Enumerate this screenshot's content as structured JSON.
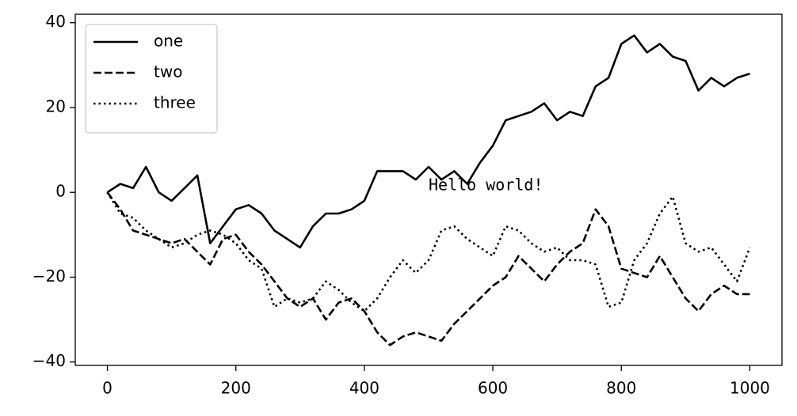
{
  "chart_data": {
    "type": "line",
    "x": [
      0,
      20,
      40,
      60,
      80,
      100,
      120,
      140,
      160,
      180,
      200,
      220,
      240,
      260,
      280,
      300,
      320,
      340,
      360,
      380,
      400,
      420,
      440,
      460,
      480,
      500,
      520,
      540,
      560,
      580,
      600,
      620,
      640,
      660,
      680,
      700,
      720,
      740,
      760,
      780,
      800,
      820,
      840,
      860,
      880,
      900,
      920,
      940,
      960,
      980,
      1000
    ],
    "series": [
      {
        "name": "one",
        "color": "#000000",
        "linestyle": "solid",
        "values": [
          0,
          2,
          1,
          6,
          0,
          -2,
          1,
          4,
          -12,
          -8,
          -4,
          -3,
          -5,
          -9,
          -11,
          -13,
          -8,
          -5,
          -5,
          -4,
          -2,
          5,
          5,
          5,
          3,
          6,
          3,
          5,
          2,
          7,
          11,
          17,
          18,
          19,
          21,
          17,
          19,
          18,
          25,
          27,
          35,
          37,
          33,
          35,
          32,
          31,
          24,
          27,
          25,
          27,
          28
        ]
      },
      {
        "name": "two",
        "color": "#000000",
        "linestyle": "dashed",
        "values": [
          0,
          -4,
          -9,
          -10,
          -11,
          -12,
          -11,
          -14,
          -17,
          -11,
          -10,
          -14,
          -17,
          -21,
          -25,
          -27,
          -25,
          -30,
          -26,
          -25,
          -28,
          -33,
          -36,
          -34,
          -33,
          -34,
          -35,
          -31,
          -28,
          -25,
          -22,
          -20,
          -15,
          -18,
          -21,
          -17,
          -14,
          -12,
          -4,
          -8,
          -18,
          -19,
          -20,
          -15,
          -20,
          -25,
          -28,
          -24,
          -22,
          -24,
          -24
        ]
      },
      {
        "name": "three",
        "color": "#000000",
        "linestyle": "dotted",
        "values": [
          0,
          -5,
          -6,
          -9,
          -11,
          -13,
          -12,
          -10,
          -9,
          -10,
          -12,
          -16,
          -18,
          -27,
          -25,
          -26,
          -25,
          -21,
          -23,
          -26,
          -28,
          -25,
          -20,
          -16,
          -19,
          -16,
          -9,
          -8,
          -11,
          -13,
          -15,
          -8,
          -9,
          -12,
          -14,
          -13,
          -16,
          -16,
          -17,
          -27,
          -26,
          -16,
          -12,
          -5,
          -1,
          -12,
          -14,
          -13,
          -17,
          -21,
          -13
        ]
      }
    ],
    "annotation": {
      "text": "Hello world!",
      "x": 500,
      "y": 0
    },
    "legend": "upper left",
    "xlim": [
      -50,
      1050
    ],
    "ylim": [
      -40.8,
      42
    ],
    "xticks": [
      0,
      200,
      400,
      600,
      800,
      1000
    ],
    "yticks": [
      {
        "value": -40,
        "label": "−40"
      },
      {
        "value": -20,
        "label": "−20"
      },
      0,
      20,
      40
    ]
  }
}
